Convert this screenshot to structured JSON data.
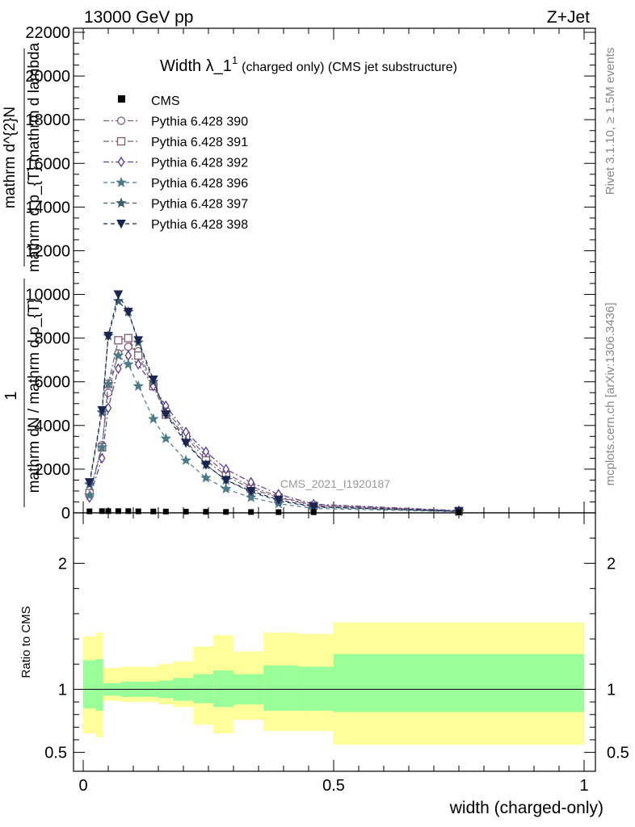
{
  "header": {
    "left": "13000 GeV pp",
    "right": "Z+Jet"
  },
  "side_text": {
    "rivet": "Rivet 3.1.10, ≥ 1.5M events",
    "mcplots": "mcplots.cern.ch [arXiv:1306.3436]"
  },
  "watermark": "CMS_2021_I1920187",
  "colors": {
    "cms": "#000000",
    "p390": "#7a5a7e",
    "p391": "#7e5a6a",
    "p392": "#5a3d8a",
    "p396": "#4d7a86",
    "p397": "#3d5e6e",
    "p398": "#1a2550",
    "band_inner": "#99ff99",
    "band_outer": "#ffff99"
  },
  "chart_data": [
    {
      "type": "line",
      "title": "Width λ_1",
      "title_sup": "1",
      "title_suffix": "(charged only) (CMS jet substructure)",
      "ylabel_numerator": "mathrm d^{2}N",
      "ylabel_denominator": "mathrm d p_{T} mathrm d lambda",
      "ylabel_prefix": "1",
      "ylabel_frac": "mathrm dN / mathrm d p_{T}",
      "xlim": [
        0,
        1
      ],
      "ylim": [
        0,
        22000
      ],
      "yticks": [
        0,
        2000,
        4000,
        6000,
        8000,
        10000,
        12000,
        14000,
        16000,
        18000,
        20000,
        22000
      ],
      "ytick_labels": [
        "0",
        "2000",
        "4000",
        "6000",
        "8000",
        "10000",
        "12000",
        "14000",
        "16000",
        "18000",
        "20000",
        "22000"
      ],
      "legend_position": "top-left",
      "x": [
        0.0125,
        0.0375,
        0.05,
        0.07,
        0.09,
        0.11,
        0.14,
        0.165,
        0.205,
        0.245,
        0.285,
        0.335,
        0.39,
        0.46,
        0.75
      ],
      "cms_values": [
        50,
        60,
        60,
        60,
        60,
        50,
        45,
        40,
        35,
        30,
        25,
        20,
        15,
        10,
        5
      ],
      "series": [
        {
          "name": "Pythia 6.428 390",
          "marker": "circle",
          "dash": "dashdot",
          "color_key": "p390",
          "values": [
            850,
            3100,
            5500,
            7300,
            7600,
            7400,
            5900,
            4700,
            3600,
            2600,
            1800,
            1200,
            750,
            350,
            90
          ]
        },
        {
          "name": "Pythia 6.428 391",
          "marker": "square",
          "dash": "dashdot",
          "color_key": "p391",
          "values": [
            900,
            3000,
            5900,
            7900,
            8000,
            7200,
            5800,
            4500,
            3500,
            2400,
            1700,
            1100,
            700,
            330,
            85
          ]
        },
        {
          "name": "Pythia 6.428 392",
          "marker": "diamond",
          "dash": "dashdot",
          "color_key": "p392",
          "values": [
            700,
            2500,
            4800,
            6600,
            7200,
            6800,
            5800,
            4900,
            3700,
            2800,
            2000,
            1400,
            850,
            400,
            100
          ]
        },
        {
          "name": "Pythia 6.428 396",
          "marker": "star",
          "dash": "dashed",
          "color_key": "p396",
          "values": [
            800,
            3000,
            5900,
            7200,
            6800,
            5800,
            4300,
            3400,
            2400,
            1600,
            1100,
            700,
            420,
            200,
            50
          ]
        },
        {
          "name": "Pythia 6.428 397",
          "marker": "star",
          "dash": "dashed",
          "color_key": "p397",
          "values": [
            1300,
            4600,
            8100,
            9700,
            9200,
            7800,
            6000,
            4600,
            3300,
            2200,
            1500,
            950,
            550,
            260,
            65
          ]
        },
        {
          "name": "Pythia 6.428 398",
          "marker": "triangle-down",
          "dash": "dashed",
          "color_key": "p398",
          "values": [
            1400,
            4700,
            8100,
            10000,
            9200,
            7900,
            6100,
            4500,
            3200,
            2200,
            1500,
            1000,
            600,
            280,
            70
          ]
        }
      ],
      "cms_label": "CMS"
    },
    {
      "type": "area",
      "ylabel": "Ratio to CMS",
      "xlabel": "width (charged-only)",
      "xlim": [
        0,
        1
      ],
      "ylim": [
        0.35,
        2.4
      ],
      "xticks": [
        0,
        0.5,
        1
      ],
      "xtick_labels": [
        "0",
        "0.5",
        "1"
      ],
      "yticks": [
        0.5,
        1,
        2
      ],
      "ytick_labels": [
        "0.5",
        "1",
        "2"
      ],
      "bins": [
        0,
        0.025,
        0.04,
        0.075,
        0.1,
        0.125,
        0.15,
        0.18,
        0.22,
        0.26,
        0.3,
        0.36,
        0.43,
        0.5,
        1.0
      ],
      "band_drawn_from": 0.0,
      "band_drawn_to": 0.5,
      "inner_up": [
        1.23,
        1.24,
        1.05,
        1.06,
        1.06,
        1.06,
        1.07,
        1.09,
        1.12,
        1.15,
        1.12,
        1.19,
        1.18,
        1.28
      ],
      "inner_down": [
        0.85,
        0.83,
        0.95,
        0.94,
        0.94,
        0.94,
        0.93,
        0.91,
        0.89,
        0.86,
        0.88,
        0.83,
        0.83,
        0.82
      ],
      "outer_up": [
        1.42,
        1.45,
        1.17,
        1.18,
        1.18,
        1.18,
        1.2,
        1.22,
        1.34,
        1.43,
        1.3,
        1.45,
        1.44,
        1.53
      ],
      "outer_down": [
        0.65,
        0.62,
        0.91,
        0.9,
        0.9,
        0.9,
        0.88,
        0.86,
        0.72,
        0.65,
        0.76,
        0.67,
        0.67,
        0.56
      ]
    }
  ]
}
